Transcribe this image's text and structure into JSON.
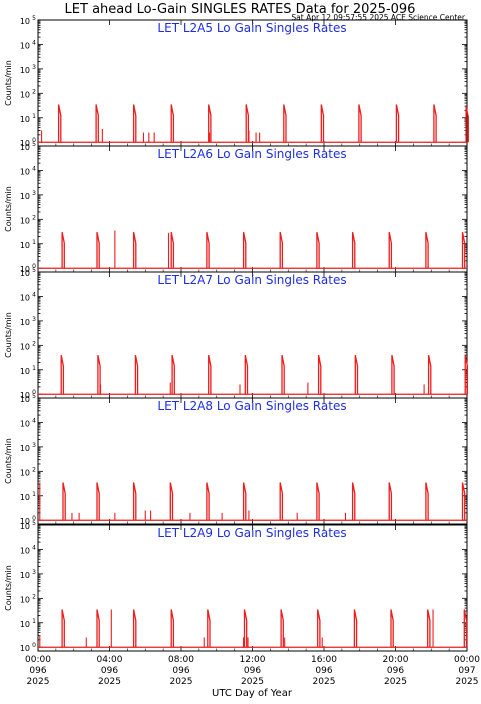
{
  "header": {
    "title": "LET ahead Lo-Gain SINGLES RATES Data for 2025-096",
    "subtitle": "Sat Apr 12 09:57:55 2025 ACE Science Center"
  },
  "chart_data": {
    "type": "line",
    "ylabel": "Counts/min",
    "xlabel": "UTC Day of Year",
    "x_axis": {
      "range_hours": [
        0,
        24
      ],
      "ticks": [
        {
          "hour": 0,
          "time": "00:00",
          "doy": "096",
          "year": "2025"
        },
        {
          "hour": 4,
          "time": "04:00",
          "doy": "096",
          "year": "2025"
        },
        {
          "hour": 8,
          "time": "08:00",
          "doy": "096",
          "year": "2025"
        },
        {
          "hour": 12,
          "time": "12:00",
          "doy": "096",
          "year": "2025"
        },
        {
          "hour": 16,
          "time": "16:00",
          "doy": "096",
          "year": "2025"
        },
        {
          "hour": 20,
          "time": "20:00",
          "doy": "096",
          "year": "2025"
        },
        {
          "hour": 24,
          "time": "00:00",
          "doy": "097",
          "year": "2025"
        }
      ]
    },
    "y_axis": {
      "scale": "log",
      "range": [
        0.7,
        100000
      ],
      "tick_labels": [
        {
          "base": "10",
          "exp": "0",
          "value": 1
        },
        {
          "base": "10",
          "exp": "1",
          "value": 10
        },
        {
          "base": "10",
          "exp": "2",
          "value": 100
        },
        {
          "base": "10",
          "exp": "3",
          "value": 1000
        },
        {
          "base": "10",
          "exp": "4",
          "value": 10000
        },
        {
          "base": "10",
          "exp": "5",
          "value": 100000
        }
      ]
    },
    "line_color": "#ee1c1c",
    "title_color": "#1f2ee0",
    "panels": [
      {
        "title": "LET L2A5 Lo Gain Singles Rates",
        "baseline": 1,
        "bursts": [
          {
            "hour": 1.15,
            "peak": 35
          },
          {
            "hour": 3.25,
            "peak": 35
          },
          {
            "hour": 5.35,
            "peak": 35
          },
          {
            "hour": 7.45,
            "peak": 35
          },
          {
            "hour": 9.55,
            "peak": 35
          },
          {
            "hour": 11.65,
            "peak": 35
          },
          {
            "hour": 13.75,
            "peak": 35
          },
          {
            "hour": 15.85,
            "peak": 35
          },
          {
            "hour": 17.95,
            "peak": 35
          },
          {
            "hour": 20.05,
            "peak": 35
          },
          {
            "hour": 22.15,
            "peak": 35
          },
          {
            "hour": 23.95,
            "peak": 30
          }
        ],
        "spikes": [
          {
            "hour": 0.2,
            "peak": 3
          },
          {
            "hour": 3.6,
            "peak": 3.5
          },
          {
            "hour": 5.9,
            "peak": 2.5
          },
          {
            "hour": 6.2,
            "peak": 2.5
          },
          {
            "hour": 6.5,
            "peak": 2.5
          },
          {
            "hour": 9.6,
            "peak": 2.5
          },
          {
            "hour": 11.8,
            "peak": 3
          },
          {
            "hour": 12.2,
            "peak": 2.5
          },
          {
            "hour": 12.4,
            "peak": 2.5
          }
        ]
      },
      {
        "title": "LET L2A6 Lo Gain Singles Rates",
        "baseline": 1,
        "bursts": [
          {
            "hour": 1.35,
            "peak": 30
          },
          {
            "hour": 3.3,
            "peak": 30
          },
          {
            "hour": 5.35,
            "peak": 30
          },
          {
            "hour": 7.45,
            "peak": 30
          },
          {
            "hour": 9.45,
            "peak": 30
          },
          {
            "hour": 11.5,
            "peak": 30
          },
          {
            "hour": 13.55,
            "peak": 30
          },
          {
            "hour": 15.6,
            "peak": 30
          },
          {
            "hour": 17.6,
            "peak": 30
          },
          {
            "hour": 19.65,
            "peak": 30
          },
          {
            "hour": 21.7,
            "peak": 30
          },
          {
            "hour": 23.75,
            "peak": 30
          }
        ],
        "spikes": [
          {
            "hour": 4.3,
            "peak": 35
          },
          {
            "hour": 7.3,
            "peak": 28
          }
        ]
      },
      {
        "title": "LET L2A7 Lo Gain Singles Rates",
        "baseline": 1,
        "bursts": [
          {
            "hour": 1.3,
            "peak": 40
          },
          {
            "hour": 3.35,
            "peak": 40
          },
          {
            "hour": 5.45,
            "peak": 40
          },
          {
            "hour": 7.5,
            "peak": 40
          },
          {
            "hour": 9.55,
            "peak": 40
          },
          {
            "hour": 11.6,
            "peak": 40
          },
          {
            "hour": 13.65,
            "peak": 40
          },
          {
            "hour": 15.7,
            "peak": 40
          },
          {
            "hour": 17.75,
            "peak": 40
          },
          {
            "hour": 19.8,
            "peak": 40
          },
          {
            "hour": 21.85,
            "peak": 40
          },
          {
            "hour": 23.9,
            "peak": 40
          }
        ],
        "spikes": [
          {
            "hour": 3.5,
            "peak": 2.5
          },
          {
            "hour": 7.4,
            "peak": 3
          },
          {
            "hour": 11.3,
            "peak": 2.5
          },
          {
            "hour": 15.1,
            "peak": 3
          },
          {
            "hour": 21.6,
            "peak": 2.5
          }
        ]
      },
      {
        "title": "LET L2A8 Lo Gain Singles Rates",
        "baseline": 1,
        "bursts": [
          {
            "hour": 1.4,
            "peak": 35
          },
          {
            "hour": 3.3,
            "peak": 35
          },
          {
            "hour": 5.35,
            "peak": 35
          },
          {
            "hour": 7.4,
            "peak": 35
          },
          {
            "hour": 9.45,
            "peak": 35
          },
          {
            "hour": 11.5,
            "peak": 35
          },
          {
            "hour": 13.55,
            "peak": 35
          },
          {
            "hour": 15.6,
            "peak": 35
          },
          {
            "hour": 17.6,
            "peak": 35
          },
          {
            "hour": 19.65,
            "peak": 35
          },
          {
            "hour": 21.7,
            "peak": 35
          },
          {
            "hour": 23.75,
            "peak": 35
          }
        ],
        "spikes": [
          {
            "hour": 0.1,
            "peak": 35
          },
          {
            "hour": 1.9,
            "peak": 2
          },
          {
            "hour": 2.3,
            "peak": 2
          },
          {
            "hour": 4.3,
            "peak": 2
          },
          {
            "hour": 6.0,
            "peak": 2.5
          },
          {
            "hour": 6.3,
            "peak": 2.5
          },
          {
            "hour": 8.5,
            "peak": 2
          },
          {
            "hour": 10.3,
            "peak": 2
          },
          {
            "hour": 11.8,
            "peak": 2.5
          },
          {
            "hour": 14.5,
            "peak": 2
          },
          {
            "hour": 17.2,
            "peak": 2
          }
        ]
      },
      {
        "title": "LET L2A9 Lo Gain Singles Rates",
        "baseline": 1,
        "bursts": [
          {
            "hour": 1.35,
            "peak": 35
          },
          {
            "hour": 3.3,
            "peak": 35
          },
          {
            "hour": 5.35,
            "peak": 35
          },
          {
            "hour": 7.45,
            "peak": 35
          },
          {
            "hour": 9.5,
            "peak": 35
          },
          {
            "hour": 11.55,
            "peak": 35
          },
          {
            "hour": 13.6,
            "peak": 35
          },
          {
            "hour": 15.65,
            "peak": 35
          },
          {
            "hour": 17.7,
            "peak": 35
          },
          {
            "hour": 19.75,
            "peak": 35
          },
          {
            "hour": 21.8,
            "peak": 35
          },
          {
            "hour": 23.85,
            "peak": 35
          }
        ],
        "spikes": [
          {
            "hour": 0.1,
            "peak": 3
          },
          {
            "hour": 2.7,
            "peak": 2.5
          },
          {
            "hour": 4.1,
            "peak": 35
          },
          {
            "hour": 9.3,
            "peak": 2.5
          },
          {
            "hour": 11.5,
            "peak": 2.5
          },
          {
            "hour": 11.75,
            "peak": 2.5
          },
          {
            "hour": 13.8,
            "peak": 2.5
          },
          {
            "hour": 15.9,
            "peak": 2.5
          },
          {
            "hour": 22.1,
            "peak": 35
          }
        ]
      }
    ]
  }
}
